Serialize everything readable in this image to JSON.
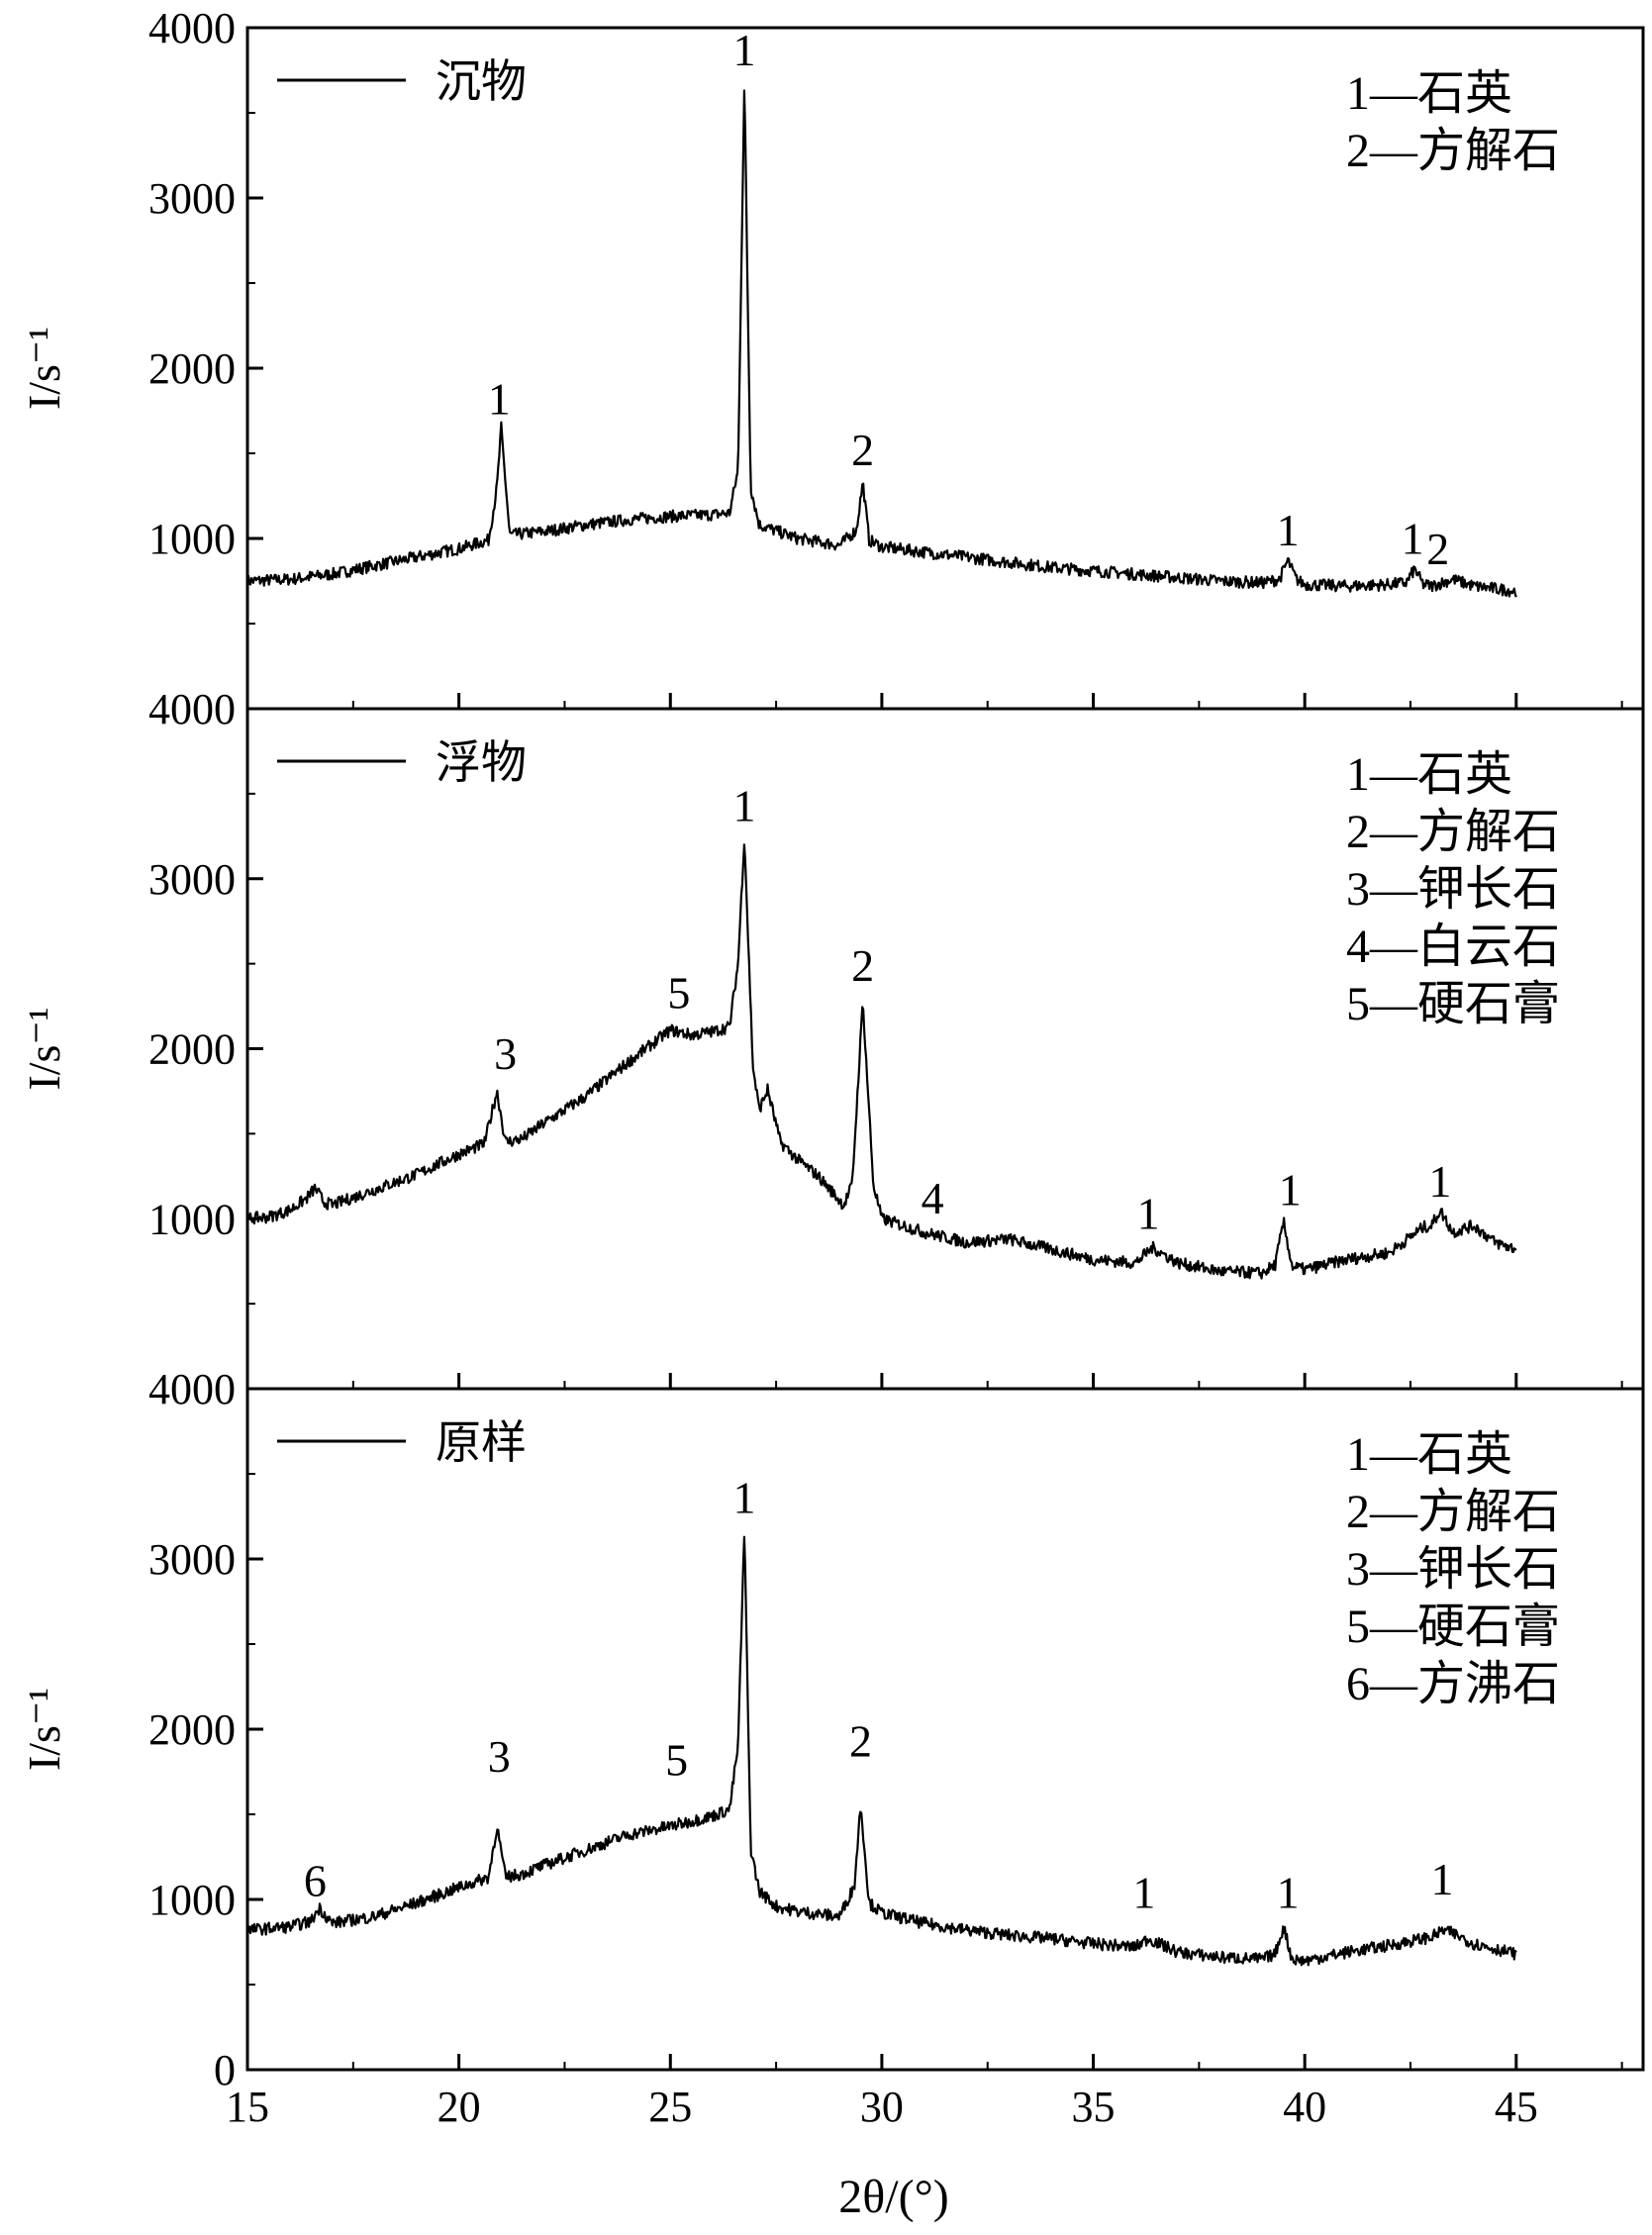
{
  "chart_data": {
    "type": "line",
    "xlabel": "2θ/(°)",
    "xlim": [
      15,
      48
    ],
    "xticks": [
      15,
      20,
      25,
      30,
      35,
      40,
      45
    ],
    "panels": [
      {
        "name": "sinks",
        "legend": "沉物",
        "ylabel": "I/s⁻¹",
        "ylim": [
          0,
          4000
        ],
        "yticks": [
          1000,
          2000,
          3000,
          4000
        ],
        "ytick_labels": [
          "1000",
          "2000",
          "3000",
          "4000"
        ],
        "series": [
          {
            "name": "沉物",
            "x": [
              15,
              16,
              17,
              18,
              19,
              20,
              20.7,
              20.9,
              21.0,
              21.2,
              22,
              23,
              24,
              25,
              26,
              26.4,
              26.6,
              26.75,
              26.9,
              27.1,
              28,
              29,
              29.4,
              29.55,
              29.7,
              30,
              31,
              32,
              33,
              34,
              35,
              36,
              37,
              38,
              39,
              39.4,
              39.6,
              39.8,
              40,
              41,
              42,
              42.4,
              42.6,
              42.8,
              43,
              43.5,
              44,
              45
            ],
            "y": [
              750,
              760,
              790,
              840,
              890,
              940,
              990,
              1300,
              1650,
              1020,
              1040,
              1080,
              1110,
              1130,
              1140,
              1150,
              1400,
              3680,
              1300,
              1080,
              1000,
              960,
              1050,
              1330,
              990,
              950,
              920,
              890,
              860,
              830,
              810,
              790,
              770,
              750,
              740,
              760,
              870,
              760,
              730,
              720,
              730,
              740,
              820,
              730,
              720,
              760,
              720,
              690
            ]
          }
        ],
        "peak_labels": [
          {
            "text": "1",
            "x": 20.95,
            "y": 1730
          },
          {
            "text": "1",
            "x": 26.75,
            "y": 3780
          },
          {
            "text": "2",
            "x": 29.55,
            "y": 1430
          },
          {
            "text": "1",
            "x": 39.6,
            "y": 960
          },
          {
            "text": "1",
            "x": 42.55,
            "y": 910
          },
          {
            "text": "2",
            "x": 43.15,
            "y": 850
          }
        ],
        "key": [
          "1—石英",
          "2—方解石"
        ]
      },
      {
        "name": "floats",
        "legend": "浮物",
        "ylabel": "I/s⁻¹",
        "ylim": [
          0,
          4000
        ],
        "yticks": [
          1000,
          2000,
          3000,
          4000
        ],
        "ytick_labels": [
          "1000",
          "2000",
          "3000",
          "4000"
        ],
        "series": [
          {
            "name": "浮物",
            "x": [
              15,
              15.5,
              16,
              16.4,
              16.6,
              16.8,
              17,
              18,
              19,
              20,
              20.6,
              20.9,
              21.1,
              21.5,
              22,
              23,
              24,
              25,
              25.5,
              26,
              26.4,
              26.6,
              26.75,
              26.95,
              27.1,
              27.3,
              27.6,
              28,
              28.5,
              29.1,
              29.3,
              29.55,
              29.8,
              30,
              31,
              32,
              33,
              34,
              35,
              36,
              36.4,
              37,
              38,
              39,
              39.3,
              39.5,
              39.7,
              40,
              41,
              42,
              42.8,
              43,
              43.2,
              43.5,
              44,
              44.5,
              45
            ],
            "y": [
              1000,
              1010,
              1050,
              1120,
              1180,
              1100,
              1080,
              1170,
              1260,
              1380,
              1440,
              1750,
              1450,
              1470,
              1560,
              1720,
              1920,
              2110,
              2080,
              2100,
              2130,
              2500,
              3250,
              1900,
              1640,
              1760,
              1450,
              1350,
              1250,
              1080,
              1200,
              2280,
              1200,
              1000,
              920,
              860,
              880,
              820,
              760,
              740,
              830,
              740,
              690,
              680,
              730,
              980,
              720,
              700,
              760,
              800,
              950,
              960,
              1050,
              920,
              960,
              860,
              820
            ]
          }
        ],
        "peak_labels": [
          {
            "text": "3",
            "x": 21.1,
            "y": 1880
          },
          {
            "text": "5",
            "x": 25.2,
            "y": 2240
          },
          {
            "text": "1",
            "x": 26.75,
            "y": 3340
          },
          {
            "text": "2",
            "x": 29.55,
            "y": 2400
          },
          {
            "text": "4",
            "x": 31.2,
            "y": 1030
          },
          {
            "text": "1",
            "x": 36.3,
            "y": 940
          },
          {
            "text": "1",
            "x": 39.65,
            "y": 1080
          },
          {
            "text": "1",
            "x": 43.2,
            "y": 1130
          }
        ],
        "key": [
          "1—石英",
          "2—方解石",
          "3—钾长石",
          "4—白云石",
          "5—硬石膏"
        ]
      },
      {
        "name": "raw-sample",
        "legend": "原样",
        "ylabel": "I/s⁻¹",
        "ylim": [
          0,
          4000
        ],
        "yticks": [
          0,
          1000,
          2000,
          3000,
          4000
        ],
        "ytick_labels": [
          "0",
          "1000",
          "2000",
          "3000",
          "4000"
        ],
        "series": [
          {
            "name": "原样",
            "x": [
              15,
              16,
              16.5,
              16.7,
              17,
              18,
              19,
              20,
              20.7,
              20.9,
              21.1,
              21.5,
              22,
              23,
              24,
              25,
              26,
              26.4,
              26.6,
              26.75,
              26.9,
              27.1,
              27.5,
              28,
              29,
              29.35,
              29.5,
              29.7,
              30,
              31,
              32,
              33,
              34,
              35,
              36,
              36.3,
              37,
              38,
              39,
              39.3,
              39.5,
              39.7,
              40,
              41,
              42,
              43,
              43.3,
              43.6,
              44,
              45
            ],
            "y": [
              820,
              840,
              870,
              950,
              860,
              900,
              980,
              1070,
              1130,
              1430,
              1130,
              1150,
              1200,
              1290,
              1380,
              1430,
              1490,
              1530,
              1900,
              3170,
              1300,
              1050,
              960,
              930,
              900,
              1080,
              1560,
              980,
              920,
              860,
              820,
              790,
              770,
              740,
              720,
              770,
              690,
              660,
              650,
              680,
              840,
              650,
              640,
              690,
              730,
              780,
              820,
              790,
              740,
              680
            ]
          }
        ],
        "peak_labels": [
          {
            "text": "6",
            "x": 16.6,
            "y": 1020
          },
          {
            "text": "3",
            "x": 20.95,
            "y": 1750
          },
          {
            "text": "5",
            "x": 25.15,
            "y": 1730
          },
          {
            "text": "1",
            "x": 26.75,
            "y": 3270
          },
          {
            "text": "2",
            "x": 29.5,
            "y": 1840
          },
          {
            "text": "1",
            "x": 36.2,
            "y": 950
          },
          {
            "text": "1",
            "x": 39.6,
            "y": 950
          },
          {
            "text": "1",
            "x": 43.25,
            "y": 1030
          }
        ],
        "key": [
          "1—石英",
          "2—方解石",
          "3—钾长石",
          "5—硬石膏",
          "6—方沸石"
        ]
      }
    ]
  }
}
